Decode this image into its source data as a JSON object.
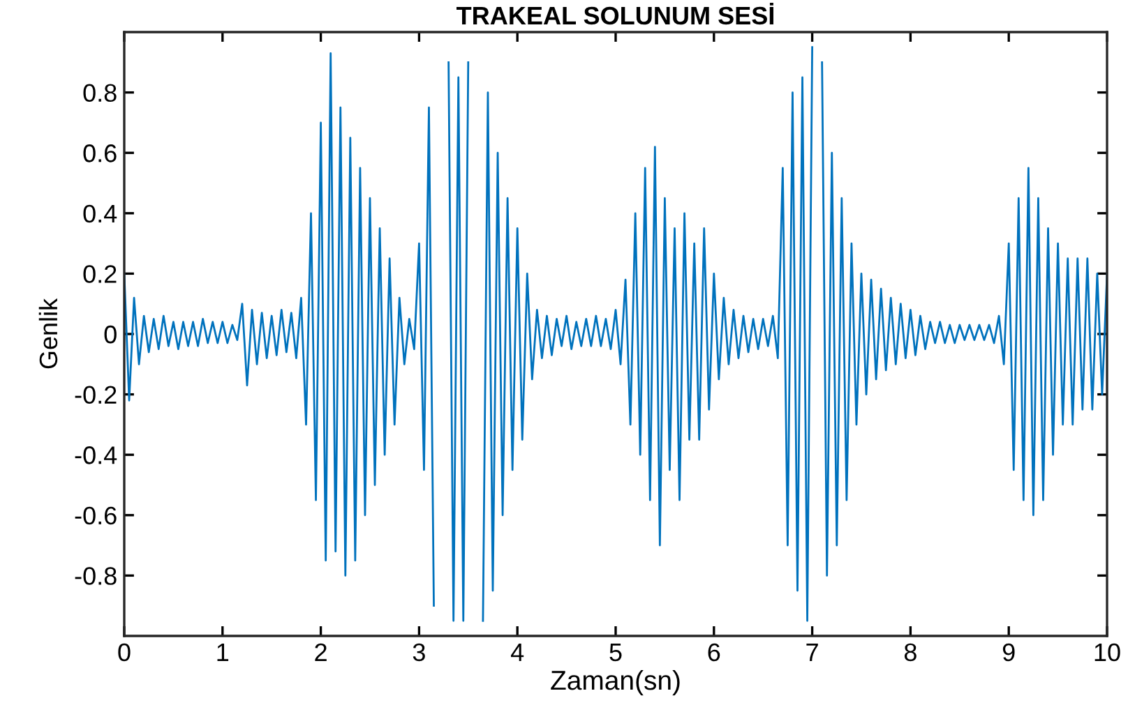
{
  "chart_data": {
    "type": "line",
    "title": "TRAKEAL SOLUNUM SESİ",
    "xlabel": "Zaman(sn)",
    "ylabel": "Genlik",
    "xlim": [
      0,
      10
    ],
    "ylim": [
      -1,
      1
    ],
    "xticks": [
      0,
      1,
      2,
      3,
      4,
      5,
      6,
      7,
      8,
      9,
      10
    ],
    "yticks": [
      {
        "value": -0.8,
        "label": "-0.8"
      },
      {
        "value": -0.6,
        "label": "-0.6"
      },
      {
        "value": -0.4,
        "label": "-0.4"
      },
      {
        "value": -0.2,
        "label": "-0.2"
      },
      0,
      0.2,
      0.4,
      0.6,
      0.8
    ],
    "grid": false,
    "marker": "none",
    "line_style": "solid",
    "series": [
      {
        "color": "#0072bd",
        "x": [
          0,
          0.05,
          0.1,
          0.15,
          0.2,
          0.25,
          0.3,
          0.35,
          0.4,
          0.45,
          0.5,
          0.55,
          0.6,
          0.65,
          0.7,
          0.75,
          0.8,
          0.85,
          0.9,
          0.95,
          1,
          1.05,
          1.1,
          1.15,
          1.2,
          1.25,
          1.3,
          1.35,
          1.4,
          1.45,
          1.5,
          1.55,
          1.6,
          1.65,
          1.7,
          1.75,
          1.8,
          1.85,
          1.9,
          1.95,
          2,
          2.05,
          2.1,
          2.15,
          2.2,
          2.25,
          2.3,
          2.35,
          2.4,
          2.45,
          2.5,
          2.55,
          2.6,
          2.65,
          2.7,
          2.75,
          2.8,
          2.85,
          2.9,
          2.95,
          3,
          3.05,
          3.1,
          3.15,
          3.2,
          3.25,
          3.3,
          3.35,
          3.4,
          3.45,
          3.5,
          3.55,
          3.6,
          3.65,
          3.7,
          3.75,
          3.8,
          3.85,
          3.9,
          3.95,
          4,
          4.05,
          4.1,
          4.15,
          4.2,
          4.25,
          4.3,
          4.35,
          4.4,
          4.45,
          4.5,
          4.55,
          4.6,
          4.65,
          4.7,
          4.75,
          4.8,
          4.85,
          4.9,
          4.95,
          5,
          5.05,
          5.1,
          5.15,
          5.2,
          5.25,
          5.3,
          5.35,
          5.4,
          5.45,
          5.5,
          5.55,
          5.6,
          5.65,
          5.7,
          5.75,
          5.8,
          5.85,
          5.9,
          5.95,
          6,
          6.05,
          6.1,
          6.15,
          6.2,
          6.25,
          6.3,
          6.35,
          6.4,
          6.45,
          6.5,
          6.55,
          6.6,
          6.65,
          6.7,
          6.75,
          6.8,
          6.85,
          6.9,
          6.95,
          7,
          7.05,
          7.1,
          7.15,
          7.2,
          7.25,
          7.3,
          7.35,
          7.4,
          7.45,
          7.5,
          7.55,
          7.6,
          7.65,
          7.7,
          7.75,
          7.8,
          7.85,
          7.9,
          7.95,
          8,
          8.05,
          8.1,
          8.15,
          8.2,
          8.25,
          8.3,
          8.35,
          8.4,
          8.45,
          8.5,
          8.55,
          8.6,
          8.65,
          8.7,
          8.75,
          8.8,
          8.85,
          8.9,
          8.95,
          9,
          9.05,
          9.1,
          9.15,
          9.2,
          9.25,
          9.3,
          9.35,
          9.4,
          9.45,
          9.5,
          9.55,
          9.6,
          9.65,
          9.7,
          9.75,
          9.8,
          9.85,
          9.9,
          9.95,
          10
        ],
        "values": [
          0.2,
          -0.22,
          0.12,
          -0.1,
          0.06,
          -0.06,
          0.05,
          -0.05,
          0.06,
          -0.04,
          0.04,
          -0.05,
          0.04,
          -0.04,
          0.04,
          -0.04,
          0.05,
          -0.03,
          0.04,
          -0.03,
          0.04,
          -0.03,
          0.03,
          -0.02,
          0.1,
          -0.17,
          0.08,
          -0.1,
          0.07,
          -0.08,
          0.06,
          -0.07,
          0.08,
          -0.06,
          0.07,
          -0.08,
          0.12,
          -0.3,
          0.4,
          -0.55,
          0.7,
          -0.75,
          0.93,
          -0.72,
          0.75,
          -0.8,
          0.65,
          -0.75,
          0.55,
          -0.6,
          0.45,
          -0.5,
          0.35,
          -0.4,
          0.25,
          -0.3,
          0.12,
          -0.1,
          0.05,
          -0.05,
          0.3,
          -0.45,
          0.75,
          -0.9,
          null,
          null,
          0.9,
          -0.95,
          0.85,
          -0.95,
          0.9,
          null,
          null,
          -0.95,
          0.8,
          -0.85,
          0.6,
          -0.6,
          0.45,
          -0.45,
          0.35,
          -0.35,
          0.2,
          -0.15,
          0.08,
          -0.08,
          0.06,
          -0.07,
          0.05,
          -0.04,
          0.06,
          -0.05,
          0.04,
          -0.04,
          0.05,
          -0.04,
          0.06,
          -0.04,
          0.05,
          -0.05,
          0.08,
          -0.1,
          0.18,
          -0.3,
          0.4,
          -0.4,
          0.55,
          -0.55,
          0.62,
          -0.7,
          0.45,
          -0.45,
          0.35,
          -0.55,
          0.4,
          -0.35,
          0.3,
          -0.35,
          0.35,
          -0.25,
          0.2,
          -0.15,
          0.12,
          -0.1,
          0.08,
          -0.08,
          0.06,
          -0.06,
          0.05,
          -0.05,
          0.05,
          -0.04,
          0.06,
          -0.08,
          0.55,
          -0.7,
          0.8,
          -0.85,
          0.85,
          -0.95,
          0.95,
          null,
          0.9,
          -0.8,
          0.6,
          -0.7,
          0.45,
          -0.55,
          0.3,
          -0.3,
          0.2,
          -0.2,
          0.18,
          -0.15,
          0.15,
          -0.12,
          0.12,
          -0.1,
          0.1,
          -0.08,
          0.08,
          -0.07,
          0.06,
          -0.05,
          0.04,
          -0.03,
          0.04,
          -0.03,
          0.03,
          -0.03,
          0.03,
          -0.02,
          0.03,
          -0.02,
          0.03,
          -0.02,
          0.03,
          -0.03,
          0.06,
          -0.1,
          0.3,
          -0.45,
          0.45,
          -0.55,
          0.55,
          -0.6,
          0.45,
          -0.55,
          0.35,
          -0.4,
          0.3,
          -0.3,
          0.25,
          -0.3,
          0.25,
          -0.25,
          0.25,
          -0.25,
          0.2,
          -0.2,
          0.2
        ]
      }
    ]
  }
}
